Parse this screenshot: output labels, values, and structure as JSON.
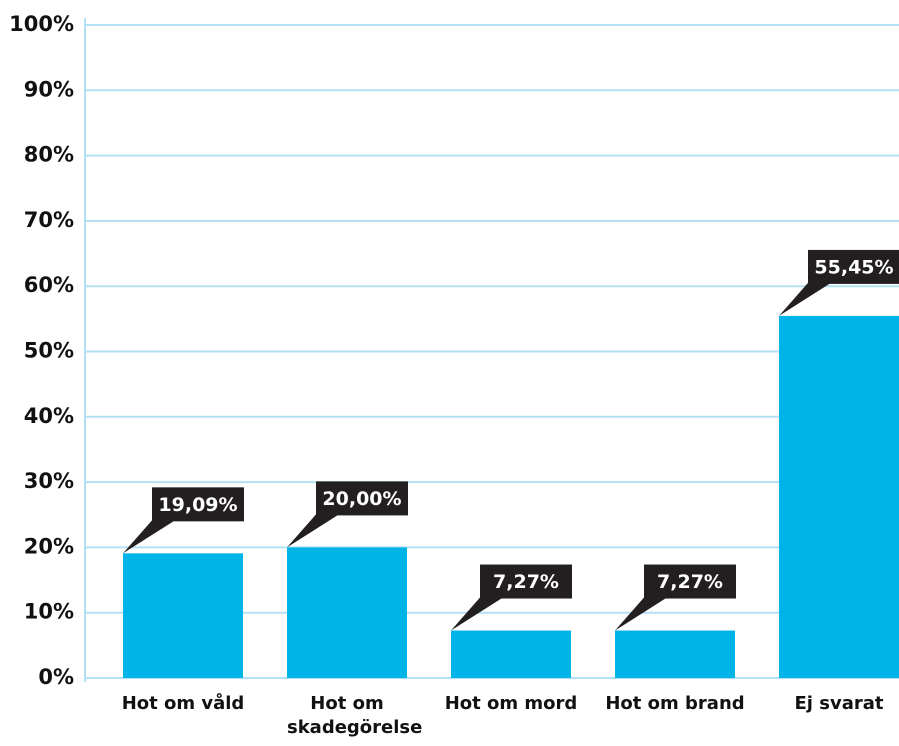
{
  "chart_data": {
    "type": "bar",
    "categories": [
      "Hot om våld",
      "Hot om skadegörelse",
      "Hot om mord",
      "Hot om brand",
      "Ej svarat"
    ],
    "values": [
      19.09,
      20.0,
      7.27,
      7.27,
      55.45
    ],
    "value_labels": [
      "19,09%",
      "20,00%",
      "7,27%",
      "7,27%",
      "55,45%"
    ],
    "color": "#00b4e8",
    "ylim": [
      0,
      100
    ],
    "yticks": [
      {
        "value": 0,
        "label": "0%"
      },
      {
        "value": 10,
        "label": "10%"
      },
      {
        "value": 20,
        "label": "20%"
      },
      {
        "value": 30,
        "label": "30%"
      },
      {
        "value": 40,
        "label": "40%"
      },
      {
        "value": 50,
        "label": "50%"
      },
      {
        "value": 60,
        "label": "60%"
      },
      {
        "value": 70,
        "label": "70%"
      },
      {
        "value": 80,
        "label": "80%"
      },
      {
        "value": 90,
        "label": "90%"
      },
      {
        "value": 100,
        "label": "100%"
      }
    ],
    "grid": true
  }
}
